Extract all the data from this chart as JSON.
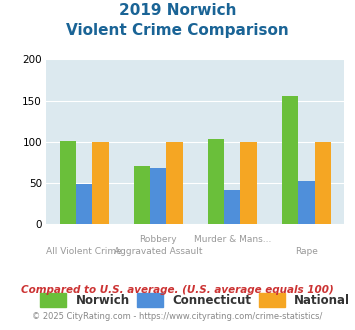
{
  "title_line1": "2019 Norwich",
  "title_line2": "Violent Crime Comparison",
  "top_labels": [
    "",
    "Robbery",
    "Murder & Mans...",
    ""
  ],
  "bottom_labels": [
    "All Violent Crime",
    "Aggravated Assault",
    "",
    "Rape"
  ],
  "norwich": [
    101,
    71,
    104,
    156
  ],
  "connecticut": [
    49,
    68,
    42,
    52
  ],
  "national": [
    100,
    100,
    100,
    100
  ],
  "norwich_color": "#6abf3a",
  "connecticut_color": "#4f8fda",
  "national_color": "#f5a623",
  "bg_color": "#dce9ef",
  "ylim": [
    0,
    200
  ],
  "yticks": [
    0,
    50,
    100,
    150,
    200
  ],
  "bar_width": 0.22,
  "legend_labels": [
    "Norwich",
    "Connecticut",
    "National"
  ],
  "footnote1": "Compared to U.S. average. (U.S. average equals 100)",
  "footnote2": "© 2025 CityRating.com - https://www.cityrating.com/crime-statistics/",
  "title_color": "#1a6496",
  "label_color": "#999999",
  "footnote1_color": "#cc3333",
  "footnote2_color": "#888888"
}
